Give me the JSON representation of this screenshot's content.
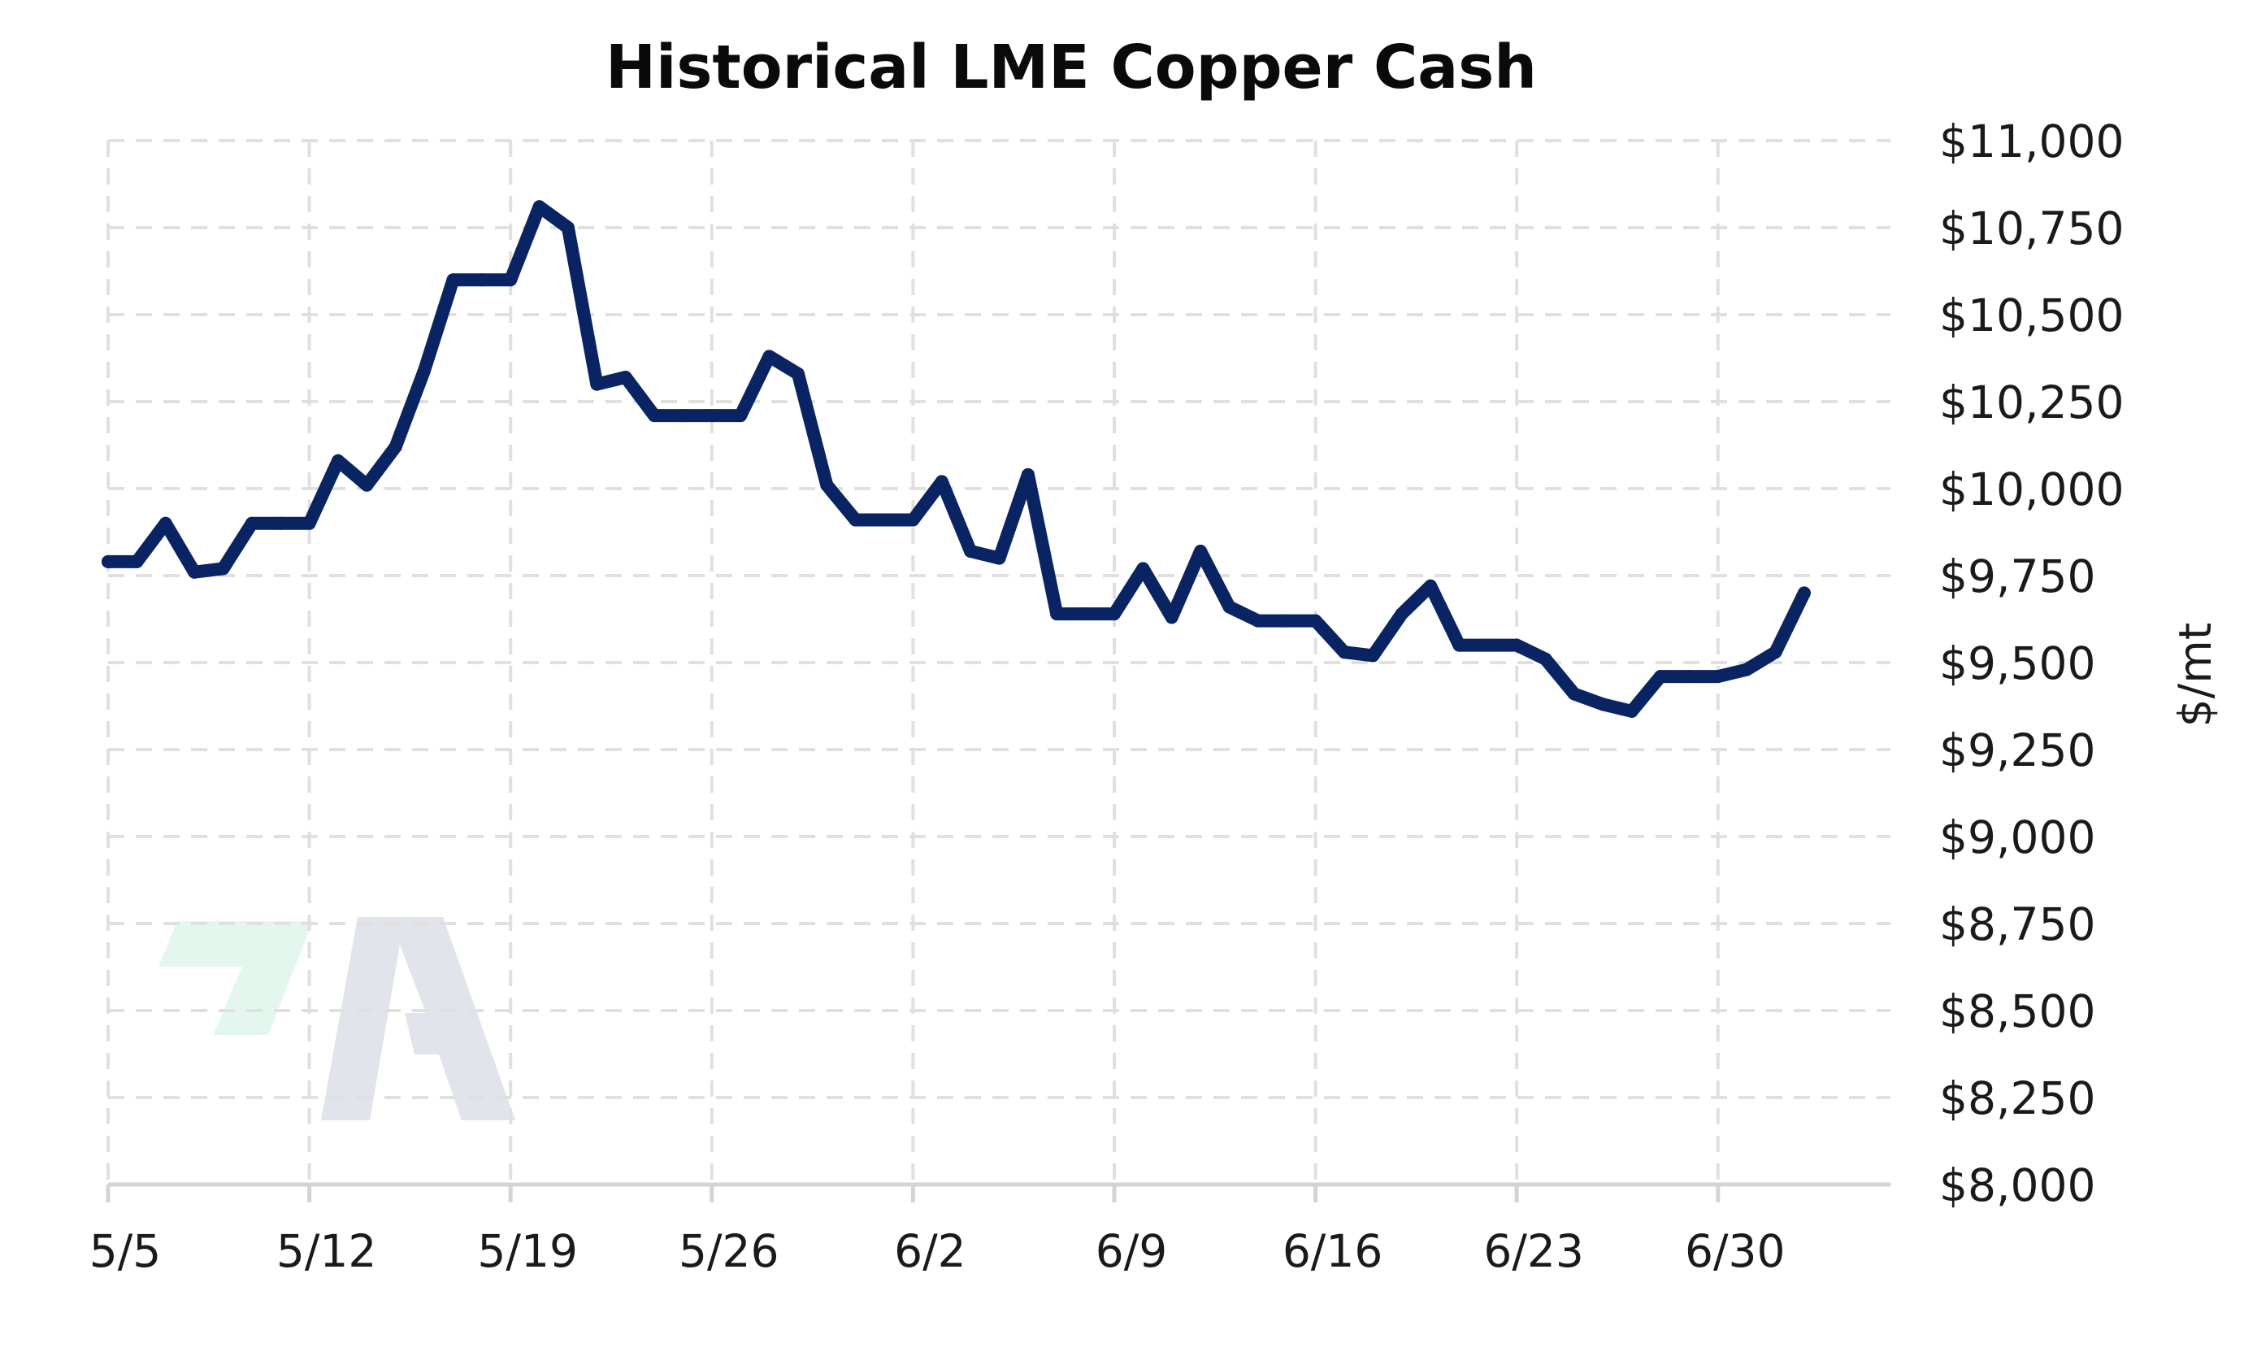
{
  "chart_data": {
    "type": "line",
    "title": "Historical LME Copper Cash",
    "xlabel": "",
    "ylabel": "$/mt",
    "x_tick_labels": [
      "5/5",
      "5/12",
      "5/19",
      "5/26",
      "6/2",
      "6/9",
      "6/16",
      "6/23",
      "6/30"
    ],
    "y_tick_labels": [
      "$8,000",
      "$8,250",
      "$8,500",
      "$8,750",
      "$9,000",
      "$9,250",
      "$9,500",
      "$9,750",
      "$10,000",
      "$10,250",
      "$10,500",
      "$10,750",
      "$11,000"
    ],
    "y_ticks": [
      8000,
      8250,
      8500,
      8750,
      9000,
      9250,
      9500,
      9750,
      10000,
      10250,
      10500,
      10750,
      11000
    ],
    "ylim": [
      8000,
      11000
    ],
    "xlim": [
      "2025-05-05",
      "2025-07-06"
    ],
    "y_axis_position": "right",
    "grid": true,
    "legend": "none",
    "color": "#0a2463",
    "series": [
      {
        "x": [
          "2025-05-05",
          "2025-05-06",
          "2025-05-07",
          "2025-05-08",
          "2025-05-09",
          "2025-05-10",
          "2025-05-11",
          "2025-05-12",
          "2025-05-13",
          "2025-05-14",
          "2025-05-15",
          "2025-05-16",
          "2025-05-17",
          "2025-05-18",
          "2025-05-19",
          "2025-05-20",
          "2025-05-21",
          "2025-05-22",
          "2025-05-23",
          "2025-05-24",
          "2025-05-25",
          "2025-05-26",
          "2025-05-27",
          "2025-05-28",
          "2025-05-29",
          "2025-05-30",
          "2025-05-31",
          "2025-06-01",
          "2025-06-02",
          "2025-06-03",
          "2025-06-04",
          "2025-06-05",
          "2025-06-06",
          "2025-06-07",
          "2025-06-08",
          "2025-06-09",
          "2025-06-10",
          "2025-06-11",
          "2025-06-12",
          "2025-06-13",
          "2025-06-14",
          "2025-06-15",
          "2025-06-16",
          "2025-06-17",
          "2025-06-18",
          "2025-06-19",
          "2025-06-20",
          "2025-06-21",
          "2025-06-22",
          "2025-06-23",
          "2025-06-24",
          "2025-06-25",
          "2025-06-26",
          "2025-06-27",
          "2025-06-28",
          "2025-06-29",
          "2025-06-30",
          "2025-07-01",
          "2025-07-02",
          "2025-07-03"
        ],
        "y": [
          9790,
          9790,
          9900,
          9760,
          9770,
          9900,
          9900,
          9900,
          10080,
          10010,
          10120,
          10340,
          10600,
          10600,
          10600,
          10810,
          10750,
          10300,
          10320,
          10210,
          10210,
          10210,
          10210,
          10380,
          10330,
          10010,
          9910,
          9910,
          9910,
          10020,
          9820,
          9800,
          10040,
          9640,
          9640,
          9640,
          9770,
          9630,
          9820,
          9660,
          9620,
          9620,
          9620,
          9530,
          9520,
          9640,
          9720,
          9550,
          9550,
          9550,
          9510,
          9410,
          9380,
          9360,
          9460,
          9460,
          9460,
          9480,
          9530,
          9700
        ]
      }
    ]
  }
}
